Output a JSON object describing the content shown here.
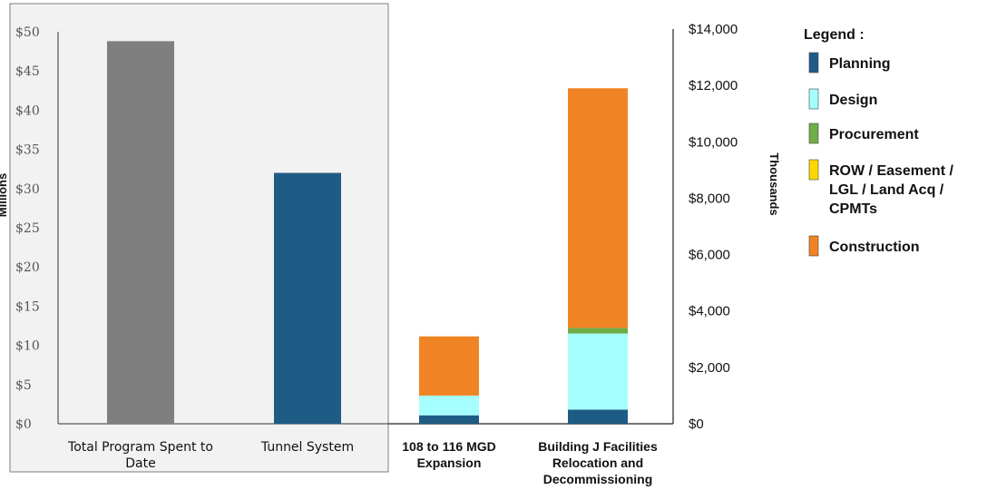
{
  "chart_data": [
    {
      "type": "bar",
      "categories": [
        [
          "Total Program Spent to",
          "Date"
        ],
        [
          "Tunnel System"
        ]
      ],
      "values": [
        48.8,
        32.0
      ],
      "bar_colors": [
        "#7f7f7f",
        "#1f5c85"
      ],
      "ylabel": "Millions",
      "ylim": [
        0,
        50
      ],
      "yticks": [
        "$0",
        "$5",
        "$10",
        "$15",
        "$20",
        "$25",
        "$30",
        "$35",
        "$40",
        "$45",
        "$50"
      ],
      "background": "#f2f2f2",
      "grid": false
    },
    {
      "type": "bar",
      "stacked": true,
      "categories": [
        [
          "108 to 116 MGD",
          "Expansion"
        ],
        [
          "Building J Facilities",
          "Relocation and",
          "Decommissioning"
        ]
      ],
      "ylabel": "Thousands",
      "ylim": [
        0,
        14000
      ],
      "yticks": [
        "$0",
        "$2,000",
        "$4,000",
        "$6,000",
        "$8,000",
        "$10,000",
        "$12,000",
        "$14,000"
      ],
      "grid": false,
      "series": [
        {
          "name": "Planning",
          "color": "#1f5c85",
          "values": [
            300,
            500
          ]
        },
        {
          "name": "Design",
          "color": "#a6ffff",
          "values": [
            700,
            2700
          ]
        },
        {
          "name": "Procurement",
          "color": "#70ad47",
          "values": [
            0,
            200
          ]
        },
        {
          "name": "ROW / Easement / LGL / Land Acq / CPMTs",
          "color": "#ffd700",
          "values": [
            0,
            0
          ]
        },
        {
          "name": "Construction",
          "color": "#f08424",
          "values": [
            2100,
            8500
          ]
        }
      ]
    }
  ],
  "legend": {
    "title": "Legend :",
    "items": [
      {
        "lines": [
          "Planning"
        ],
        "color": "#1f5c85"
      },
      {
        "lines": [
          "Design"
        ],
        "color": "#a6ffff"
      },
      {
        "lines": [
          "Procurement"
        ],
        "color": "#70ad47"
      },
      {
        "lines": [
          "ROW / Easement /",
          "LGL / Land Acq /",
          "CPMTs"
        ],
        "color": "#ffd700"
      },
      {
        "lines": [
          "Construction"
        ],
        "color": "#f08424"
      }
    ]
  }
}
